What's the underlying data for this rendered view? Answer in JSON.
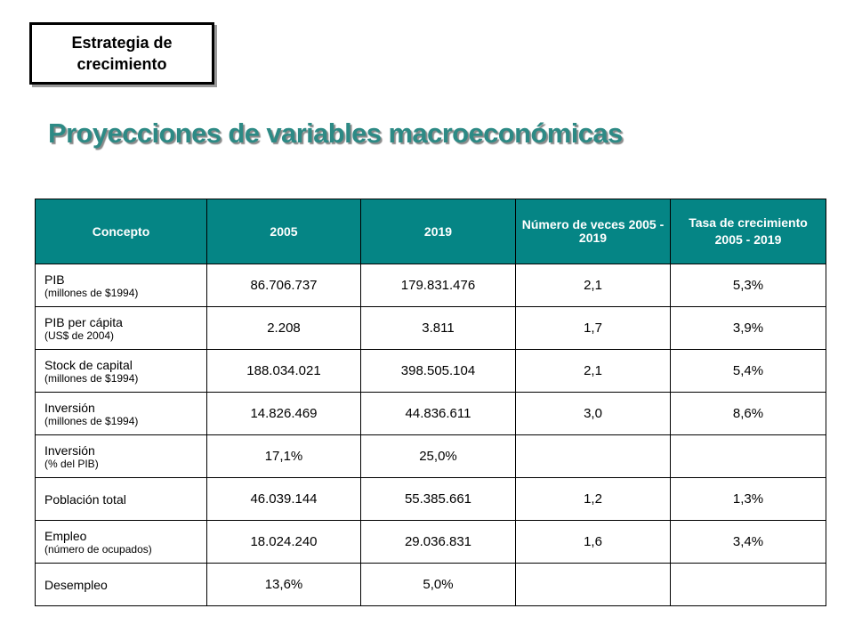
{
  "section_tag": {
    "line1": "Estrategia de",
    "line2": "crecimiento"
  },
  "title": "Proyecciones de variables macroeconómicas",
  "table": {
    "headers": {
      "concepto": "Concepto",
      "y2005": "2005",
      "y2019": "2019",
      "veces": "Número de veces 2005 - 2019",
      "tasa_line1": "Tasa de crecimiento",
      "tasa_line2": "2005 - 2019"
    },
    "rows": [
      {
        "concept": "PIB",
        "sub": "(millones de $1994)",
        "y2005": "86.706.737",
        "y2019": "179.831.476",
        "veces": "2,1",
        "tasa": "5,3%"
      },
      {
        "concept": "PIB per cápita",
        "sub": "(US$ de 2004)",
        "y2005": "2.208",
        "y2019": "3.811",
        "veces": "1,7",
        "tasa": "3,9%"
      },
      {
        "concept": "Stock de capital",
        "sub": "(millones de $1994)",
        "y2005": "188.034.021",
        "y2019": "398.505.104",
        "veces": "2,1",
        "tasa": "5,4%"
      },
      {
        "concept": "Inversión",
        "sub": "(millones de $1994)",
        "y2005": "14.826.469",
        "y2019": "44.836.611",
        "veces": "3,0",
        "tasa": "8,6%"
      },
      {
        "concept": "Inversión",
        "sub": "(% del PIB)",
        "y2005": "17,1%",
        "y2019": "25,0%",
        "veces": "",
        "tasa": ""
      },
      {
        "concept": "Población total",
        "sub": "",
        "y2005": "46.039.144",
        "y2019": "55.385.661",
        "veces": "1,2",
        "tasa": "1,3%"
      },
      {
        "concept": "Empleo",
        "sub": "(número de ocupados)",
        "y2005": "18.024.240",
        "y2019": "29.036.831",
        "veces": "1,6",
        "tasa": "3,4%"
      },
      {
        "concept": "Desempleo",
        "sub": "",
        "y2005": "13,6%",
        "y2019": "5,0%",
        "veces": "",
        "tasa": ""
      }
    ]
  },
  "colors": {
    "header_bg": "#058585",
    "title": "#2d8a85"
  }
}
